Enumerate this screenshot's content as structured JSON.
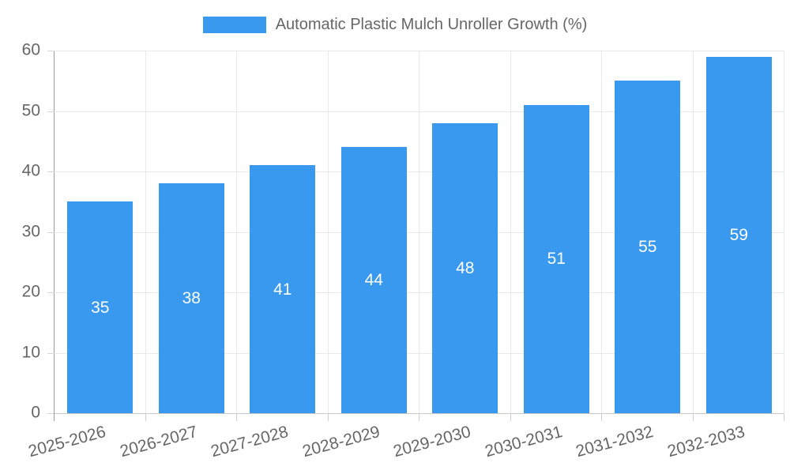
{
  "chart_data": {
    "type": "bar",
    "title": "Automatic Plastic Mulch Unroller Growth (%)",
    "categories": [
      "2025-2026",
      "2026-2027",
      "2027-2028",
      "2028-2029",
      "2029-2030",
      "2030-2031",
      "2031-2032",
      "2032-2033"
    ],
    "values": [
      35,
      38,
      41,
      44,
      48,
      51,
      55,
      59
    ],
    "xlabel": "",
    "ylabel": "",
    "ylim": [
      0,
      60
    ],
    "yticks": [
      0,
      10,
      20,
      30,
      40,
      50,
      60
    ],
    "grid": true,
    "legend_position": "top",
    "x_tick_rotation_deg": -15,
    "colors": {
      "bar": "#3899EE",
      "value_label": "#FFFFFF",
      "axis_label": "#666666",
      "gridline": "#E9E9E9",
      "y_axis_line": "#9A9A9A",
      "x_axis_line": "#C6C6C6"
    }
  }
}
